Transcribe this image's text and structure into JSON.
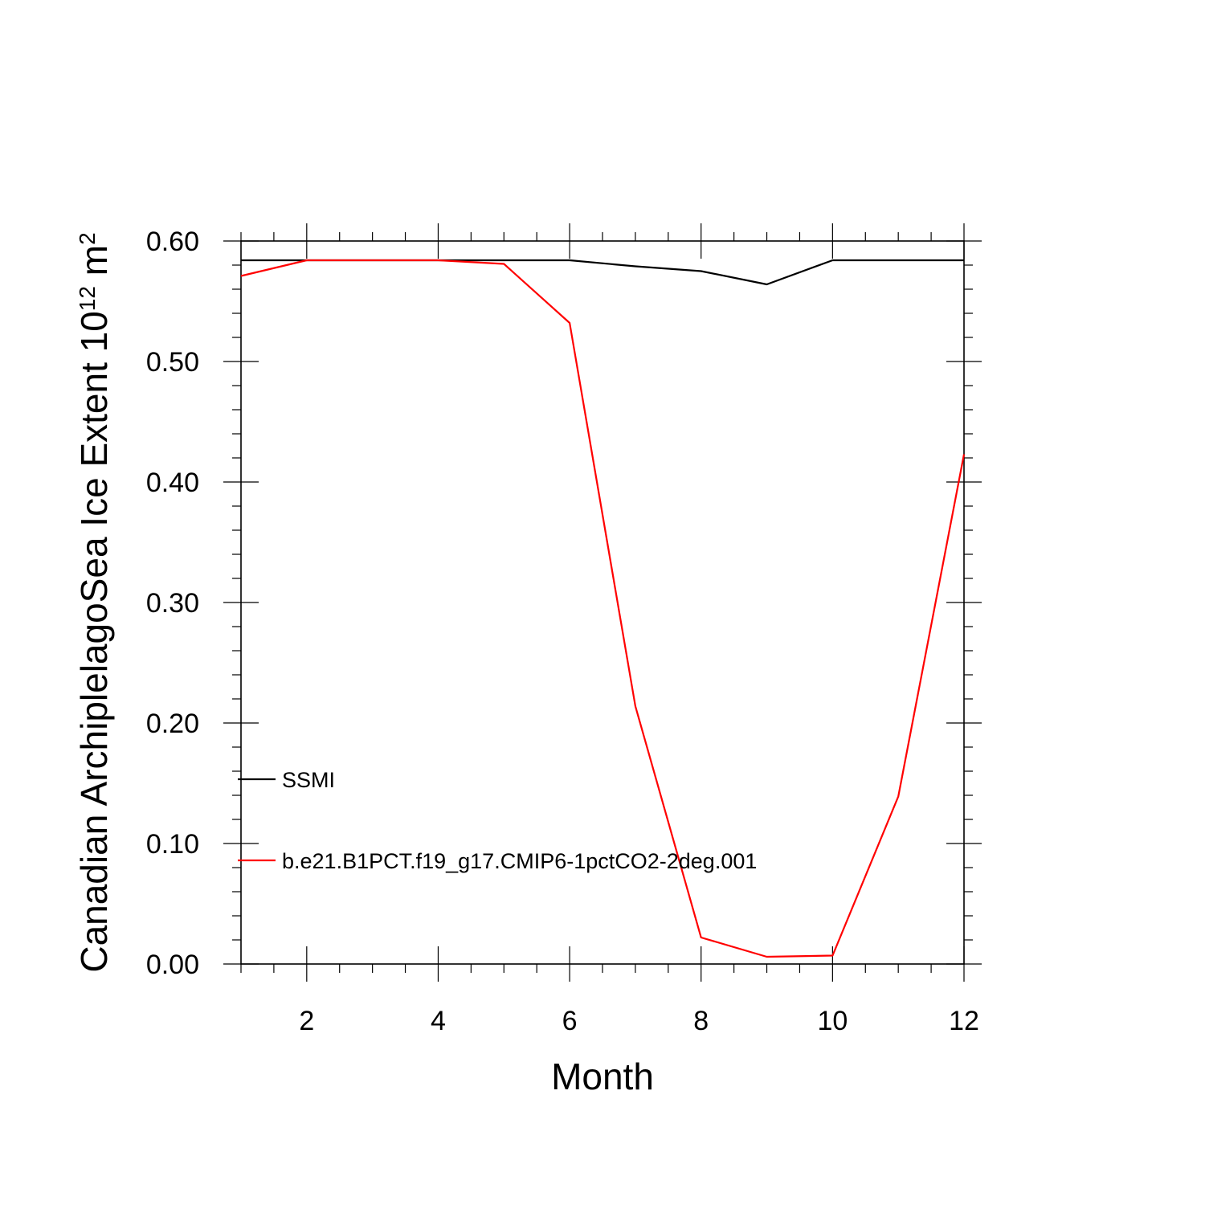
{
  "chart_data": {
    "type": "line",
    "title": "",
    "xlabel": "Month",
    "ylabel": {
      "text": "Canadian ArchiplelagoSea Ice Extent 10",
      "superscript": "12",
      "unit": " m",
      "unit_superscript": "2"
    },
    "xlim": [
      1,
      12
    ],
    "ylim": [
      0.0,
      0.6
    ],
    "x_ticks": [
      2,
      4,
      6,
      8,
      10,
      12
    ],
    "x_tick_labels": [
      "2",
      "4",
      "6",
      "8",
      "10",
      "12"
    ],
    "y_ticks": [
      0.0,
      0.1,
      0.2,
      0.3,
      0.4,
      0.5,
      0.6
    ],
    "y_tick_labels": [
      "0.00",
      "0.10",
      "0.20",
      "0.30",
      "0.40",
      "0.50",
      "0.60"
    ],
    "grid": false,
    "legend_position": "lower-left",
    "x": [
      1,
      2,
      3,
      4,
      5,
      6,
      7,
      8,
      9,
      10,
      11,
      12
    ],
    "series": [
      {
        "name": "SSMI",
        "color": "#000000",
        "values": [
          0.584,
          0.584,
          0.584,
          0.584,
          0.584,
          0.584,
          0.579,
          0.575,
          0.564,
          0.584,
          0.584,
          0.584
        ]
      },
      {
        "name": "b.e21.B1PCT.f19_g17.CMIP6-1pctCO2-2deg.001",
        "color": "#ff0000",
        "values": [
          0.571,
          0.584,
          0.584,
          0.584,
          0.581,
          0.532,
          0.214,
          0.022,
          0.006,
          0.007,
          0.139,
          0.423
        ]
      }
    ]
  }
}
